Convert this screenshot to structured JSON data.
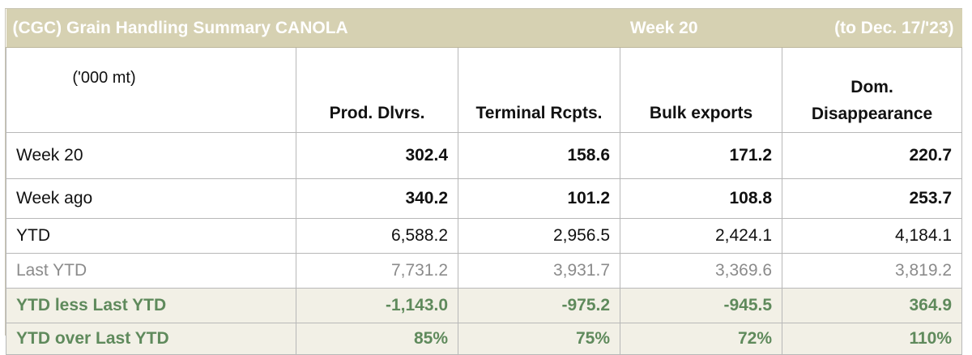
{
  "banner": {
    "title": "(CGC) Grain Handling Summary CANOLA",
    "week": "Week 20",
    "date": "(to Dec. 17/'23)"
  },
  "header": {
    "units": "('000 mt)",
    "columns": [
      "Prod. Dlvrs.",
      "Terminal Rcpts.",
      "Bulk exports",
      "Dom. Disappearance"
    ]
  },
  "rows": [
    {
      "label": "Week 20",
      "values": [
        "302.4",
        "158.6",
        "171.2",
        "220.7"
      ]
    },
    {
      "label": "Week ago",
      "values": [
        "340.2",
        "101.2",
        "108.8",
        "253.7"
      ]
    },
    {
      "label": "YTD",
      "values": [
        "6,588.2",
        "2,956.5",
        "2,424.1",
        "4,184.1"
      ]
    },
    {
      "label": "Last YTD",
      "values": [
        "7,731.2",
        "3,931.7",
        "3,369.6",
        "3,819.2"
      ]
    },
    {
      "label": "YTD less Last YTD",
      "values": [
        "-1,143.0",
        "-975.2",
        "-945.5",
        "364.9"
      ]
    },
    {
      "label": "YTD over Last YTD",
      "values": [
        "85%",
        "75%",
        "72%",
        "110%"
      ]
    }
  ],
  "colors": {
    "banner_bg": "#d6d1b2",
    "highlight_bg": "#f2f0e6",
    "highlight_text": "#5f8a5c",
    "muted_text": "#8b8b8b"
  }
}
